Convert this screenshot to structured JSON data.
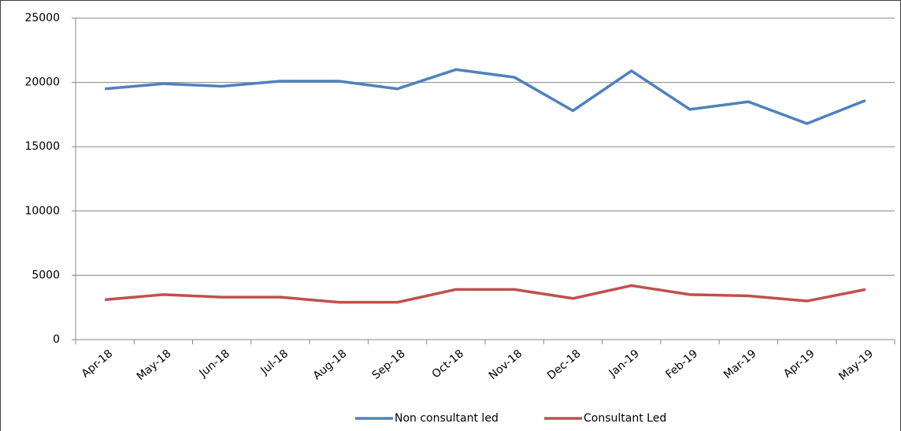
{
  "chart_data": {
    "type": "line",
    "categories": [
      "Apr-18",
      "May-18",
      "Jun-18",
      "Jul-18",
      "Aug-18",
      "Sep-18",
      "Oct-18",
      "Nov-18",
      "Dec-18",
      "Jan-19",
      "Feb-19",
      "Mar-19",
      "Apr-19",
      "May-19"
    ],
    "series": [
      {
        "name": "Non consultant led",
        "color": "#4f81bd",
        "values": [
          19500,
          19900,
          19700,
          20100,
          20100,
          19500,
          21000,
          20400,
          17800,
          20900,
          17900,
          18500,
          16800,
          18600
        ]
      },
      {
        "name": "Consultant Led",
        "color": "#c0504d",
        "values": [
          3100,
          3500,
          3300,
          3300,
          2900,
          2900,
          3900,
          3900,
          3200,
          4200,
          3500,
          3400,
          3000,
          3900
        ]
      }
    ],
    "ylim": [
      0,
      25000
    ],
    "yticks": [
      0,
      5000,
      10000,
      15000,
      20000,
      25000
    ],
    "grid": true,
    "legend": "bottom"
  }
}
